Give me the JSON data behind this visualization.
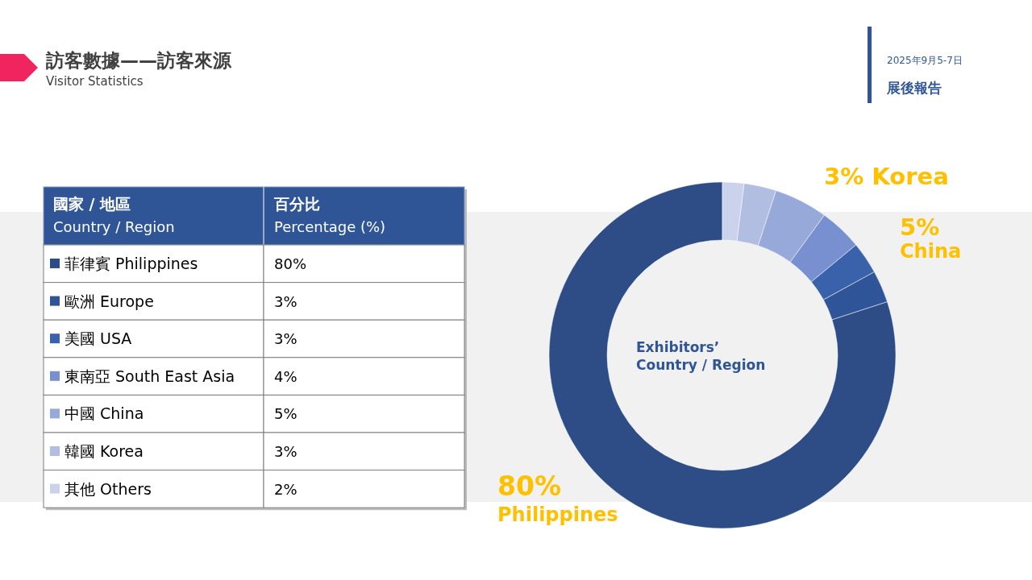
{
  "chart_data": {
    "type": "donut",
    "title": "訪客數據——訪客來源",
    "subtitle": "Visitor Statistics",
    "categories": [
      "菲律賓 Philippines",
      "歐洲 Europe",
      "美國 USA",
      "東南亞 South East Asia",
      "中國 China",
      "韓國 Korea",
      "其他 Others"
    ],
    "values": [
      80,
      3,
      3,
      4,
      5,
      3,
      2
    ],
    "legend": "left",
    "value_labels": [
      "80%",
      "3%",
      "3%",
      "4%",
      "5%",
      "3%",
      "2%"
    ],
    "colors": [
      "#2e4d87",
      "#2f5497",
      "#3a62ab",
      "#7890cf",
      "#97a9d9",
      "#b2bde2",
      "#cbd2ec"
    ],
    "annotations": [
      "國家 / 地區",
      "Country / Region",
      "百分比",
      "Percentage (%)",
      "Exhibitors’",
      "Country / Region",
      "2025年9月5-7日",
      "展後報告",
      "3% Korea",
      "5%",
      "China",
      "80%",
      "Philippines"
    ]
  }
}
